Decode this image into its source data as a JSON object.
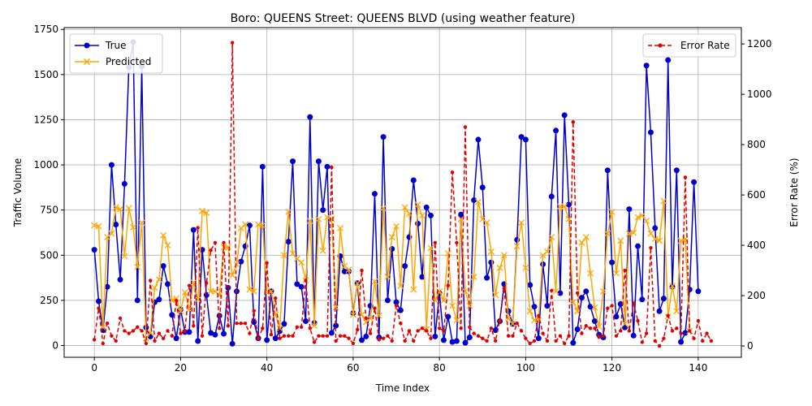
{
  "chart_data": {
    "type": "line",
    "title": "Boro: QUEENS Street: QUEENS BLVD (using weather feature)",
    "xlabel": "Time Index",
    "ylabel": "Traffic Volume",
    "y2label": "Error Rate (%)",
    "xlim": [
      -7,
      150
    ],
    "ylim": [
      -65,
      1760
    ],
    "y2lim": [
      -45,
      1265
    ],
    "xticks": [
      0,
      20,
      40,
      60,
      80,
      100,
      120,
      140
    ],
    "yticks": [
      0,
      250,
      500,
      750,
      1000,
      1250,
      1500,
      1750
    ],
    "y2ticks": [
      0,
      200,
      400,
      600,
      800,
      1000,
      1200
    ],
    "grid": true,
    "legend_left": "upper-left",
    "legend_right": "upper-right",
    "colors": {
      "true": "#0000cd",
      "predicted": "#ffa500",
      "error": "#e00000"
    },
    "series": [
      {
        "name": "True",
        "values": [
          530,
          245,
          85,
          325,
          1000,
          670,
          365,
          895,
          1540,
          1680,
          250,
          1545,
          100,
          50,
          240,
          255,
          440,
          340,
          170,
          40,
          200,
          75,
          75,
          640,
          25,
          530,
          280,
          70,
          60,
          165,
          65,
          320,
          10,
          300,
          465,
          550,
          665,
          130,
          40,
          990,
          30,
          300,
          40,
          80,
          120,
          575,
          1020,
          340,
          325,
          135,
          1265,
          125,
          1020,
          750,
          990,
          70,
          110,
          495,
          410,
          410,
          180,
          345,
          30,
          50,
          220,
          840,
          45,
          1155,
          250,
          535,
          240,
          195,
          440,
          600,
          915,
          675,
          380,
          765,
          720,
          50,
          290,
          30,
          160,
          20,
          25,
          725,
          15,
          45,
          805,
          1140,
          875,
          375,
          460,
          85,
          135,
          340,
          190,
          120,
          585,
          1155,
          1140,
          335,
          215,
          40,
          450,
          220,
          825,
          1190,
          290,
          1275,
          780,
          15,
          90,
          265,
          300,
          215,
          135,
          60,
          45,
          970,
          460,
          160,
          230,
          100,
          755,
          55,
          550,
          255,
          1550,
          1180,
          650,
          190,
          260,
          1580,
          325,
          970,
          20,
          70,
          310,
          905,
          300
        ]
      },
      {
        "name": "Predicted",
        "values": [
          665,
          660,
          100,
          600,
          620,
          765,
          755,
          495,
          760,
          655,
          435,
          680,
          40,
          70,
          320,
          365,
          610,
          555,
          250,
          260,
          190,
          295,
          200,
          350,
          255,
          745,
          735,
          300,
          300,
          280,
          545,
          545,
          390,
          450,
          650,
          670,
          310,
          300,
          670,
          665,
          295,
          300,
          170,
          95,
          500,
          740,
          510,
          480,
          460,
          360,
          690,
          110,
          700,
          525,
          710,
          700,
          210,
          650,
          440,
          420,
          170,
          345,
          170,
          130,
          150,
          355,
          165,
          760,
          380,
          600,
          660,
          330,
          765,
          730,
          310,
          780,
          720,
          90,
          540,
          250,
          300,
          250,
          510,
          220,
          140,
          700,
          300,
          220,
          380,
          795,
          700,
          680,
          520,
          280,
          430,
          500,
          150,
          120,
          550,
          680,
          430,
          190,
          140,
          140,
          500,
          520,
          600,
          300,
          770,
          770,
          700,
          240,
          190,
          570,
          600,
          400,
          210,
          105,
          300,
          620,
          740,
          400,
          580,
          120,
          620,
          625,
          710,
          720,
          690,
          620,
          590,
          580,
          800,
          160,
          330,
          190,
          580,
          590,
          80
        ]
      },
      {
        "name": "Error Rate",
        "values": [
          25,
          150,
          10,
          90,
          40,
          20,
          110,
          60,
          50,
          60,
          75,
          60,
          10,
          260,
          20,
          50,
          30,
          60,
          40,
          180,
          50,
          60,
          240,
          80,
          470,
          40,
          250,
          380,
          410,
          70,
          410,
          80,
          1205,
          90,
          90,
          90,
          50,
          140,
          30,
          70,
          330,
          45,
          190,
          30,
          40,
          40,
          40,
          75,
          75,
          260,
          70,
          15,
          40,
          40,
          40,
          710,
          20,
          40,
          40,
          30,
          10,
          65,
          300,
          110,
          50,
          150,
          25,
          30,
          40,
          20,
          160,
          90,
          20,
          60,
          20,
          60,
          70,
          60,
          30,
          410,
          70,
          60,
          240,
          690,
          410,
          70,
          870,
          75,
          50,
          40,
          30,
          20,
          70,
          20,
          100,
          230,
          40,
          40,
          90,
          60,
          30,
          10,
          20,
          120,
          50,
          20,
          220,
          20,
          40,
          10,
          40,
          890,
          210,
          50,
          80,
          70,
          70,
          35,
          40,
          150,
          160,
          40,
          60,
          300,
          60,
          170,
          100,
          15,
          50,
          390,
          20,
          0,
          30,
          120,
          60,
          70,
          50,
          670,
          60,
          30,
          100,
          20,
          50,
          20
        ]
      }
    ]
  }
}
